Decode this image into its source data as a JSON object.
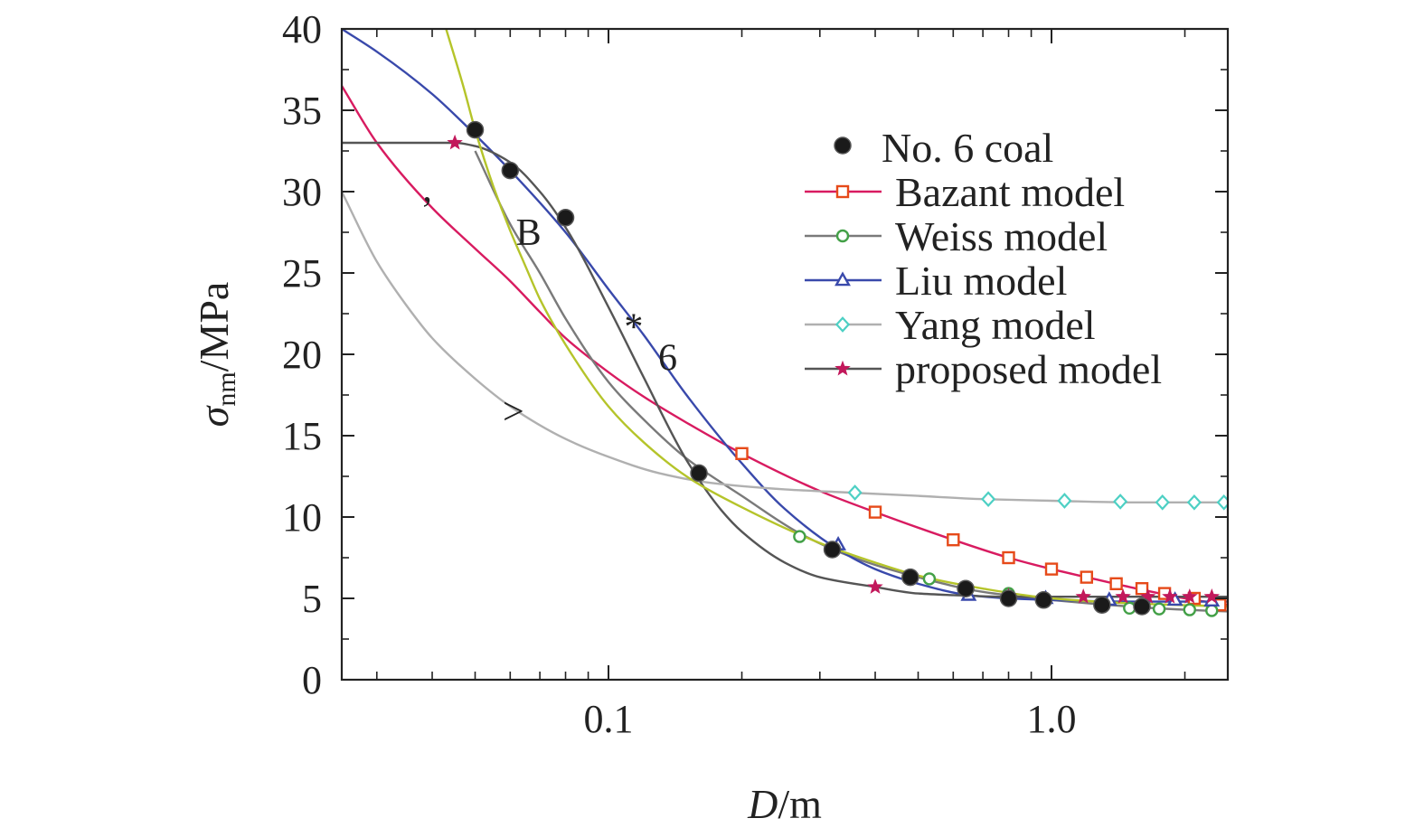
{
  "chart_data": {
    "type": "scatter",
    "x_scale": "log",
    "xlabel": {
      "italic": "D",
      "rest": "/m"
    },
    "ylabel": {
      "sym": "σ",
      "sub": "nm",
      "rest": "/MPa"
    },
    "xlim": [
      0.025,
      2.5
    ],
    "ylim": [
      0,
      40
    ],
    "x_ticks": [
      {
        "value": 0.1,
        "label": "0.1"
      },
      {
        "value": 1.0,
        "label": "1.0"
      }
    ],
    "y_ticks": [
      0,
      5,
      10,
      15,
      20,
      25,
      30,
      35,
      40
    ],
    "legend_position": "upper-right",
    "series": [
      {
        "name": "No. 6 coal",
        "kind": "points",
        "marker": "filled-circle",
        "color": "#1a1a1a",
        "x": [
          0.05,
          0.06,
          0.08,
          0.16,
          0.32,
          0.48,
          0.64,
          0.8,
          0.96,
          1.3,
          1.6
        ],
        "y": [
          33.8,
          31.3,
          28.4,
          12.7,
          8.0,
          6.3,
          5.6,
          5.0,
          4.9,
          4.6,
          4.5
        ]
      },
      {
        "name": "Bazant model",
        "kind": "curve",
        "marker": "open-square",
        "color": "#d81b60",
        "marker_color": "#e64a19",
        "x": [
          0.025,
          0.03,
          0.04,
          0.05,
          0.06,
          0.07,
          0.08,
          0.1,
          0.12,
          0.15,
          0.2,
          0.3,
          0.4,
          0.6,
          0.8,
          1.0,
          1.2,
          1.5,
          2.0,
          2.5
        ],
        "y": [
          36.5,
          33,
          29,
          26.5,
          24.5,
          22.6,
          21,
          18.9,
          17.4,
          15.8,
          13.9,
          11.6,
          10.3,
          8.6,
          7.5,
          6.8,
          6.3,
          5.7,
          5.0,
          4.6
        ],
        "marker_x": [
          0.2,
          0.4,
          0.6,
          0.8,
          1.0,
          1.2,
          1.4,
          1.6,
          1.8,
          2.1,
          2.4
        ],
        "marker_y": [
          13.9,
          10.3,
          8.6,
          7.5,
          6.8,
          6.3,
          5.9,
          5.6,
          5.3,
          5.0,
          4.6
        ]
      },
      {
        "name": "Weiss model",
        "kind": "curve",
        "marker": "open-circle",
        "color": "#7a7a7a",
        "marker_color": "#43a047",
        "x": [
          0.05,
          0.06,
          0.07,
          0.08,
          0.1,
          0.12,
          0.15,
          0.2,
          0.27,
          0.35,
          0.5,
          0.7,
          1.0,
          1.5,
          2.0,
          2.5
        ],
        "y": [
          32.5,
          28,
          25,
          22.2,
          18.3,
          16,
          13.6,
          11.3,
          9.0,
          7.6,
          6.3,
          5.4,
          4.9,
          4.5,
          4.3,
          4.2
        ],
        "marker_x": [
          0.27,
          0.53,
          0.8,
          1.5,
          1.75,
          2.05,
          2.3
        ],
        "marker_y": [
          8.8,
          6.2,
          5.3,
          4.4,
          4.35,
          4.3,
          4.25
        ]
      },
      {
        "name": "Liu model",
        "kind": "curve",
        "marker": "open-triangle",
        "color": "#3949ab",
        "marker_color": "#3949ab",
        "x": [
          0.025,
          0.03,
          0.04,
          0.05,
          0.06,
          0.08,
          0.1,
          0.12,
          0.15,
          0.2,
          0.25,
          0.33,
          0.4,
          0.5,
          0.65,
          0.8,
          1.0,
          1.5,
          2.5
        ],
        "y": [
          40,
          38.6,
          36,
          33.5,
          31.3,
          27.5,
          24,
          21.2,
          17.5,
          13.3,
          10.5,
          8.0,
          6.8,
          5.9,
          5.2,
          5.0,
          4.9,
          4.8,
          4.8
        ],
        "marker_x": [
          0.33,
          0.65,
          0.97,
          1.35,
          1.9,
          2.3
        ],
        "marker_y": [
          8.3,
          5.2,
          5.0,
          4.9,
          4.9,
          4.85
        ]
      },
      {
        "name": "Yang model",
        "kind": "curve",
        "marker": "open-diamond",
        "color": "#b0b0b0",
        "marker_color": "#4dd0c4",
        "x": [
          0.025,
          0.03,
          0.035,
          0.04,
          0.05,
          0.06,
          0.08,
          0.1,
          0.13,
          0.17,
          0.25,
          0.35,
          0.5,
          0.7,
          1.0,
          1.5,
          2.0,
          2.5
        ],
        "y": [
          30,
          25.7,
          23.0,
          21.0,
          18.5,
          16.8,
          14.8,
          13.7,
          12.7,
          12.1,
          11.7,
          11.5,
          11.3,
          11.1,
          11.0,
          10.9,
          10.9,
          10.9
        ],
        "marker_x": [
          0.36,
          0.72,
          1.07,
          1.43,
          1.78,
          2.1,
          2.45
        ],
        "marker_y": [
          11.5,
          11.1,
          11.0,
          10.95,
          10.9,
          10.9,
          10.9
        ]
      },
      {
        "name": "proposed model",
        "kind": "curve",
        "marker": "star",
        "color": "#555555",
        "marker_color": "#c2185b",
        "x": [
          0.025,
          0.03,
          0.04,
          0.045,
          0.05,
          0.06,
          0.07,
          0.08,
          0.1,
          0.12,
          0.15,
          0.18,
          0.2,
          0.25,
          0.3,
          0.4,
          0.5,
          0.6,
          0.8,
          1.0,
          1.5,
          2.5
        ],
        "y": [
          33,
          33,
          33,
          33,
          32.8,
          31.8,
          30,
          27.8,
          22.9,
          18.6,
          13.5,
          10.4,
          9.1,
          7.2,
          6.3,
          5.7,
          5.3,
          5.2,
          5.1,
          5.1,
          5.1,
          5.1
        ],
        "marker_x": [
          0.045,
          0.4,
          0.8,
          1.18,
          1.45,
          1.65,
          1.85,
          2.05,
          2.3
        ],
        "marker_y": [
          33.0,
          5.7,
          5.15,
          5.1,
          5.1,
          5.1,
          5.1,
          5.1,
          5.1
        ]
      },
      {
        "name": "",
        "kind": "curve",
        "marker": "none",
        "color": "#b5c42a",
        "x": [
          0.043,
          0.047,
          0.05,
          0.055,
          0.06,
          0.065,
          0.07,
          0.08,
          0.1,
          0.12,
          0.15,
          0.2,
          0.3,
          0.4,
          0.5,
          0.7,
          1.0,
          1.5,
          2.5
        ],
        "y": [
          40,
          36.5,
          33.8,
          30.3,
          27.6,
          25.4,
          23.4,
          20.6,
          16.8,
          14.6,
          12.5,
          10.6,
          8.4,
          7.2,
          6.4,
          5.6,
          5.0,
          4.7,
          4.5
        ]
      }
    ],
    "annotations": [
      {
        "text": "B",
        "x": 0.066,
        "y": 27.5
      },
      {
        "text": "6",
        "x": 0.136,
        "y": 19.8
      },
      {
        "text": "*",
        "x": 0.114,
        "y": 21.7
      },
      {
        "text": ",",
        "x": 0.039,
        "y": 30.2
      },
      {
        "text": ">",
        "x": 0.061,
        "y": 16.5
      }
    ]
  }
}
